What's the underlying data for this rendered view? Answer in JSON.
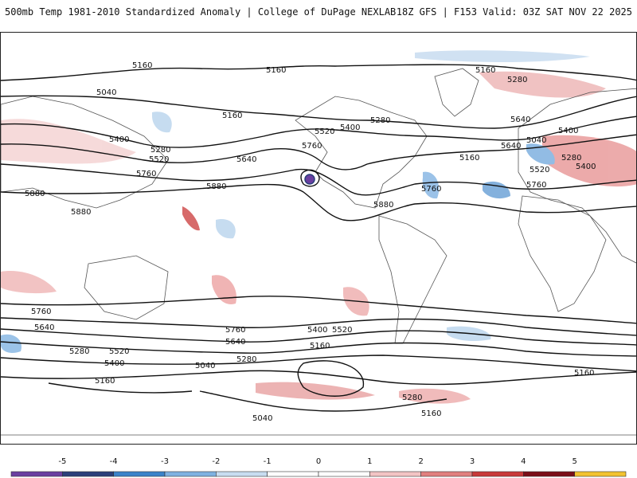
{
  "header": {
    "title": "500mb Temp 1981-2010 Standardized Anomaly | College of DuPage NEXLAB",
    "run_info": "18Z GFS | F153 Valid: 03Z SAT NOV 22 2025"
  },
  "colorbar": {
    "ticks": [
      "-5",
      "-4",
      "-3",
      "-2",
      "-1",
      "0",
      "1",
      "2",
      "3",
      "4",
      "5"
    ],
    "colors": [
      "#6a3fa0",
      "#2b3f7a",
      "#3b83c9",
      "#7fb1e0",
      "#c8dcf0",
      "#ffffff",
      "#ffffff",
      "#f2c4c4",
      "#e0807f",
      "#c83a3a",
      "#7a0f18",
      "#f2c230"
    ]
  },
  "contour_labels": [
    "5160",
    "5160",
    "5160",
    "5280",
    "5040",
    "5160",
    "5400",
    "5520",
    "5280",
    "5400",
    "5280",
    "5640",
    "5400",
    "5520",
    "5760",
    "5880",
    "5880",
    "5880",
    "5640",
    "5760",
    "5760",
    "5880",
    "5760",
    "5640",
    "5520",
    "5400",
    "5280",
    "5160",
    "5040",
    "5760",
    "5640",
    "5520",
    "5400",
    "5160",
    "5040",
    "5280",
    "5760",
    "5640",
    "5400",
    "5520",
    "5280",
    "5160",
    "5160",
    "5040",
    "5160",
    "5280"
  ],
  "colors": {
    "contour": "#111111",
    "cold_anomaly": "#7fb1e0",
    "warm_anomaly": "#f2c4c4",
    "strong_warm": "#d05050",
    "coast": "#555555"
  }
}
